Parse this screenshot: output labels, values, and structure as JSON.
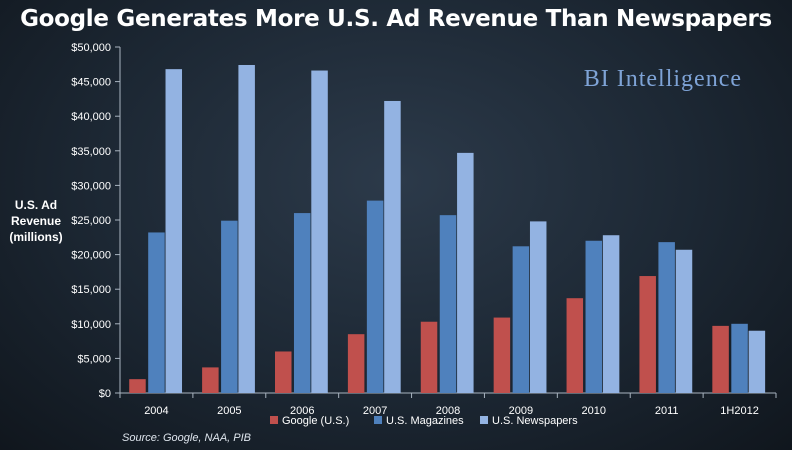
{
  "chart_data": {
    "type": "bar",
    "title": "Google Generates More U.S. Ad Revenue Than Newspapers",
    "ylabel": "U.S. Ad\nRevenue\n(millions)",
    "xlabel": "",
    "categories": [
      "2004",
      "2005",
      "2006",
      "2007",
      "2008",
      "2009",
      "2010",
      "2011",
      "1H2012"
    ],
    "ylim": [
      0,
      50000
    ],
    "yticks": [
      "$0",
      "$5,000",
      "$10,000",
      "$15,000",
      "$20,000",
      "$25,000",
      "$30,000",
      "$35,000",
      "$40,000",
      "$45,000",
      "$50,000"
    ],
    "series": [
      {
        "name": "Google (U.S.)",
        "color": "#c0504d",
        "values": [
          2000,
          3700,
          6000,
          8500,
          10300,
          10900,
          13700,
          16900,
          9700
        ]
      },
      {
        "name": "U.S. Magazines",
        "color": "#4f81bd",
        "values": [
          23200,
          24900,
          26000,
          27800,
          25700,
          21200,
          22000,
          21800,
          10000
        ]
      },
      {
        "name": "U.S. Newspapers",
        "color": "#93b3e2",
        "values": [
          46800,
          47400,
          46600,
          42200,
          34700,
          24800,
          22800,
          20700,
          9000
        ]
      }
    ],
    "grid": false,
    "legend_position": "bottom"
  },
  "branding": "BI Intelligence",
  "source_note": "Source: Google, NAA, PIB"
}
